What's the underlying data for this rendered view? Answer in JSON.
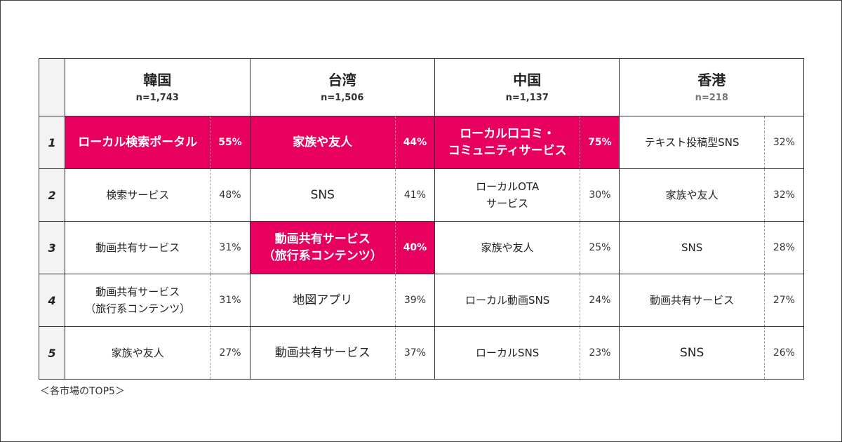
{
  "chart_data": {
    "type": "table",
    "markets": [
      {
        "name": "韓国",
        "n": "n=1,743"
      },
      {
        "name": "台湾",
        "n": "n=1,506"
      },
      {
        "name": "中国",
        "n": "n=1,137"
      },
      {
        "name": "香港",
        "n": "n=218"
      }
    ],
    "rows": [
      {
        "rank": "1",
        "cells": [
          {
            "label": "ローカル検索ポータル",
            "pct": "55%",
            "value": 55,
            "highlight": true
          },
          {
            "label": "家族や友人",
            "pct": "44%",
            "value": 44,
            "highlight": true
          },
          {
            "label": "ローカル口コミ・\nコミュニティサービス",
            "pct": "75%",
            "value": 75,
            "highlight": true
          },
          {
            "label": "テキスト投稿型SNS",
            "pct": "32%",
            "value": 32,
            "highlight": false
          }
        ]
      },
      {
        "rank": "2",
        "cells": [
          {
            "label": "検索サービス",
            "pct": "48%",
            "value": 48,
            "highlight": false
          },
          {
            "label": "SNS",
            "pct": "41%",
            "value": 41,
            "highlight": false
          },
          {
            "label": "ローカルOTA\nサービス",
            "pct": "30%",
            "value": 30,
            "highlight": false
          },
          {
            "label": "家族や友人",
            "pct": "32%",
            "value": 32,
            "highlight": false
          }
        ]
      },
      {
        "rank": "3",
        "cells": [
          {
            "label": "動画共有サービス",
            "pct": "31%",
            "value": 31,
            "highlight": false
          },
          {
            "label": "動画共有サービス\n（旅行系コンテンツ）",
            "pct": "40%",
            "value": 40,
            "highlight": true
          },
          {
            "label": "家族や友人",
            "pct": "25%",
            "value": 25,
            "highlight": false
          },
          {
            "label": "SNS",
            "pct": "28%",
            "value": 28,
            "highlight": false
          }
        ]
      },
      {
        "rank": "4",
        "cells": [
          {
            "label": "動画共有サービス\n（旅行系コンテンツ）",
            "pct": "31%",
            "value": 31,
            "highlight": false
          },
          {
            "label": "地図アプリ",
            "pct": "39%",
            "value": 39,
            "highlight": false
          },
          {
            "label": "ローカル動画SNS",
            "pct": "24%",
            "value": 24,
            "highlight": false
          },
          {
            "label": "動画共有サービス",
            "pct": "27%",
            "value": 27,
            "highlight": false
          }
        ]
      },
      {
        "rank": "5",
        "cells": [
          {
            "label": "家族や友人",
            "pct": "27%",
            "value": 27,
            "highlight": false
          },
          {
            "label": "動画共有サービス",
            "pct": "37%",
            "value": 37,
            "highlight": false
          },
          {
            "label": "ローカルSNS",
            "pct": "23%",
            "value": 23,
            "highlight": false
          },
          {
            "label": "SNS",
            "pct": "26%",
            "value": 26,
            "highlight": false
          }
        ]
      }
    ],
    "caption": "＜各市場のTOP5＞",
    "highlight_color": "#e8005f"
  }
}
